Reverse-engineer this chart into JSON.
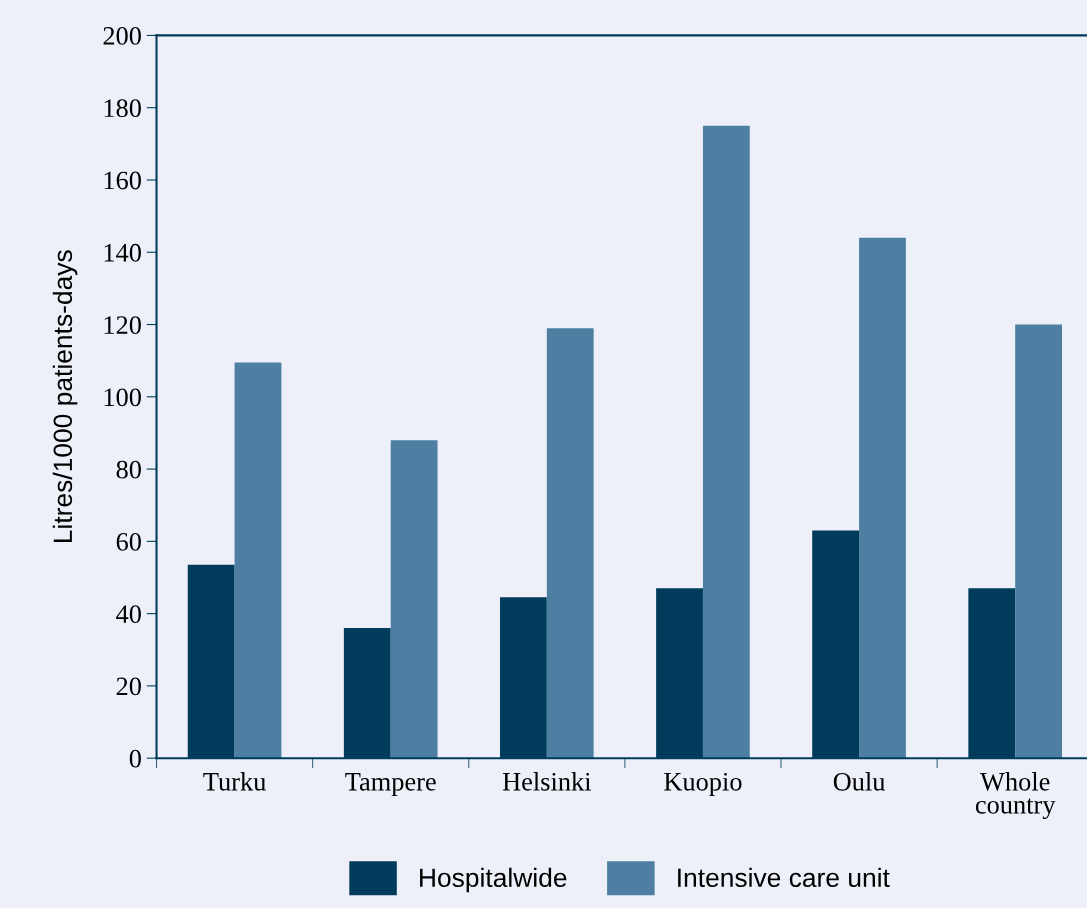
{
  "chart_data": {
    "type": "bar",
    "ylabel": "Litres/1000 patients-days",
    "categories": [
      "Turku",
      "Tampere",
      "Helsinki",
      "Kuopio",
      "Oulu",
      "Whole\ncountry"
    ],
    "series": [
      {
        "name": "Hospitalwide",
        "color": "#003b5c",
        "values": [
          53.5,
          36,
          44.5,
          47,
          63,
          47
        ]
      },
      {
        "name": "Intensive care unit",
        "color": "#4e7fa3",
        "values": [
          109.5,
          88,
          119,
          175,
          144,
          120
        ]
      }
    ],
    "ylim": [
      0,
      200
    ],
    "yticks": [
      0,
      20,
      40,
      60,
      80,
      100,
      120,
      140,
      160,
      180,
      200
    ],
    "grid": false,
    "legend": "bottom"
  }
}
